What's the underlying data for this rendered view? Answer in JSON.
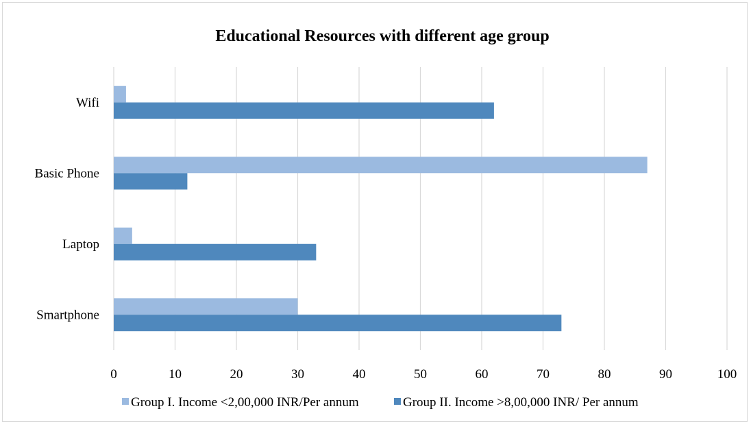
{
  "chart_data": {
    "type": "bar",
    "orientation": "horizontal",
    "title": "Educational Resources with different age group",
    "categories": [
      "Wifi",
      "Basic Phone",
      "Laptop",
      "Smartphone"
    ],
    "series": [
      {
        "name": "Group I. Income <2,00,000 INR/Per annum",
        "color": "#9bbae0",
        "values": [
          2,
          87,
          3,
          30
        ]
      },
      {
        "name": "Group II. Income >8,00,000 INR/ Per annum",
        "color": "#4f88bd",
        "values": [
          62,
          12,
          33,
          73
        ]
      }
    ],
    "xlim": [
      0,
      100
    ],
    "xticks": [
      0,
      10,
      20,
      30,
      40,
      50,
      60,
      70,
      80,
      90,
      100
    ],
    "grid": true,
    "legend_position": "bottom"
  }
}
